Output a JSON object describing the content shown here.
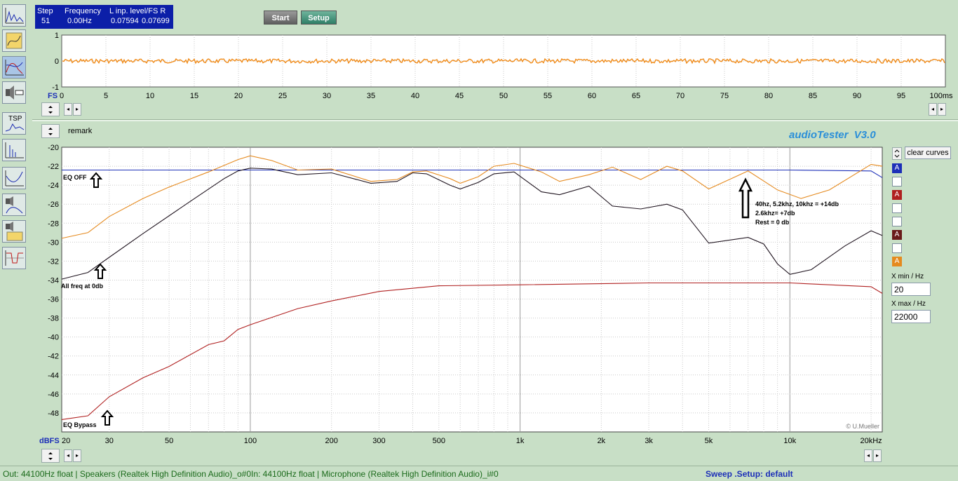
{
  "readout": {
    "step_label": "Step",
    "step_value": "51",
    "freq_label": "Frequency",
    "freq_value": "0.00Hz",
    "level_label": "L  inp. level/FS  R",
    "level_l": "0.07594",
    "level_r": "0.07699"
  },
  "buttons": {
    "start": "Start",
    "setup": "Setup"
  },
  "scope": {
    "y_ticks": [
      "1",
      "0",
      "-1"
    ],
    "fs_label": "FS",
    "x_ticks": [
      "0",
      "5",
      "10",
      "15",
      "20",
      "25",
      "30",
      "35",
      "40",
      "45",
      "50",
      "55",
      "60",
      "65",
      "70",
      "75",
      "80",
      "85",
      "90",
      "95",
      "100ms"
    ],
    "trace_color": "#f08a17"
  },
  "main": {
    "remark": "remark",
    "app_title": "audioTester  V3.0",
    "y_unit": "dBFS",
    "copyright": "© U.Mueller",
    "clear_curves": "clear curves",
    "xmin_label": "X min / Hz",
    "xmin_value": "20",
    "xmax_label": "X max / Hz",
    "xmax_value": "22000",
    "curve_slots": [
      {
        "letter": "A",
        "color": "#1c2fb8"
      },
      {
        "letter": "",
        "color": ""
      },
      {
        "letter": "A",
        "color": "#b02020"
      },
      {
        "letter": "",
        "color": ""
      },
      {
        "letter": "",
        "color": ""
      },
      {
        "letter": "A",
        "color": "#6a1a1a"
      },
      {
        "letter": "",
        "color": ""
      },
      {
        "letter": "A",
        "color": "#e58a1f"
      }
    ]
  },
  "annotations": {
    "eq_off": "EQ OFF",
    "all_freq": "All freq at 0db",
    "eq_bypass": "EQ Bypass",
    "note_1": "40hz, 5.2khz, 10khz  = +14db",
    "note_2": "2.6khz= +7db",
    "note_3": "Rest = 0 db"
  },
  "status": {
    "out": "Out: 44100Hz float  | Speakers (Realtek High Definition Audio)_o#0",
    "in": "In: 44100Hz float  | Microphone (Realtek High Definition Audio)_i#0",
    "sweep": "Sweep  .Setup:  default"
  },
  "chart_data": {
    "type": "line",
    "title": "",
    "xlabel": "",
    "ylabel": "dBFS",
    "x_scale": "log",
    "xlim": [
      20,
      22000
    ],
    "ylim": [
      -50,
      -20
    ],
    "grid": true,
    "x_tick_labels": [
      "20",
      "30",
      "50",
      "100",
      "200",
      "300",
      "500",
      "1k",
      "2k",
      "3k",
      "5k",
      "10k",
      "20kHz"
    ],
    "y_tick_labels": [
      "-20",
      "-22",
      "-24",
      "-26",
      "-28",
      "-30",
      "-32",
      "-34",
      "-36",
      "-38",
      "-40",
      "-42",
      "-44",
      "-46",
      "-48",
      "-50"
    ],
    "series": [
      {
        "color": "#1c2fb8",
        "points": [
          [
            20,
            -22.4
          ],
          [
            100,
            -22.4
          ],
          [
            1000,
            -22.4
          ],
          [
            10000,
            -22.4
          ],
          [
            20000,
            -22.5
          ],
          [
            22000,
            -23.2
          ]
        ]
      },
      {
        "color": "#e58a1f",
        "points": [
          [
            20,
            -29.6
          ],
          [
            25,
            -29.0
          ],
          [
            30,
            -27.3
          ],
          [
            40,
            -25.4
          ],
          [
            50,
            -24.2
          ],
          [
            70,
            -22.6
          ],
          [
            90,
            -21.3
          ],
          [
            100,
            -20.9
          ],
          [
            120,
            -21.4
          ],
          [
            150,
            -22.4
          ],
          [
            200,
            -22.3
          ],
          [
            280,
            -23.6
          ],
          [
            350,
            -23.4
          ],
          [
            400,
            -22.6
          ],
          [
            450,
            -22.5
          ],
          [
            550,
            -23.3
          ],
          [
            600,
            -23.8
          ],
          [
            700,
            -23.1
          ],
          [
            800,
            -22.0
          ],
          [
            950,
            -21.7
          ],
          [
            1200,
            -22.6
          ],
          [
            1400,
            -23.6
          ],
          [
            1800,
            -22.9
          ],
          [
            2200,
            -22.1
          ],
          [
            2800,
            -23.4
          ],
          [
            3500,
            -22.0
          ],
          [
            4000,
            -22.5
          ],
          [
            5000,
            -24.4
          ],
          [
            7000,
            -22.5
          ],
          [
            9000,
            -24.5
          ],
          [
            11000,
            -25.4
          ],
          [
            14000,
            -24.5
          ],
          [
            20000,
            -21.8
          ],
          [
            22000,
            -22.0
          ]
        ]
      },
      {
        "color": "#201520",
        "points": [
          [
            20,
            -33.9
          ],
          [
            25,
            -33.2
          ],
          [
            30,
            -31.6
          ],
          [
            40,
            -29.1
          ],
          [
            60,
            -25.7
          ],
          [
            80,
            -23.3
          ],
          [
            90,
            -22.5
          ],
          [
            100,
            -22.2
          ],
          [
            120,
            -22.3
          ],
          [
            150,
            -22.9
          ],
          [
            200,
            -22.7
          ],
          [
            280,
            -23.8
          ],
          [
            350,
            -23.6
          ],
          [
            400,
            -22.7
          ],
          [
            450,
            -22.8
          ],
          [
            550,
            -24.0
          ],
          [
            600,
            -24.4
          ],
          [
            700,
            -23.7
          ],
          [
            800,
            -22.8
          ],
          [
            950,
            -22.6
          ],
          [
            1200,
            -24.7
          ],
          [
            1400,
            -25.0
          ],
          [
            1800,
            -24.1
          ],
          [
            2200,
            -26.2
          ],
          [
            2800,
            -26.5
          ],
          [
            3500,
            -26.0
          ],
          [
            4000,
            -26.6
          ],
          [
            5000,
            -30.1
          ],
          [
            7000,
            -29.5
          ],
          [
            8000,
            -30.2
          ],
          [
            9000,
            -32.3
          ],
          [
            10000,
            -33.4
          ],
          [
            12000,
            -32.9
          ],
          [
            16000,
            -30.4
          ],
          [
            20000,
            -28.8
          ],
          [
            22000,
            -29.3
          ]
        ]
      },
      {
        "color": "#b02020",
        "points": [
          [
            20,
            -48.7
          ],
          [
            25,
            -48.3
          ],
          [
            30,
            -46.3
          ],
          [
            40,
            -44.3
          ],
          [
            50,
            -43.1
          ],
          [
            70,
            -40.8
          ],
          [
            80,
            -40.4
          ],
          [
            90,
            -39.2
          ],
          [
            100,
            -38.7
          ],
          [
            150,
            -37.0
          ],
          [
            200,
            -36.2
          ],
          [
            300,
            -35.2
          ],
          [
            500,
            -34.6
          ],
          [
            1000,
            -34.5
          ],
          [
            3000,
            -34.3
          ],
          [
            10000,
            -34.3
          ],
          [
            20000,
            -34.7
          ],
          [
            22000,
            -35.4
          ]
        ]
      }
    ]
  }
}
